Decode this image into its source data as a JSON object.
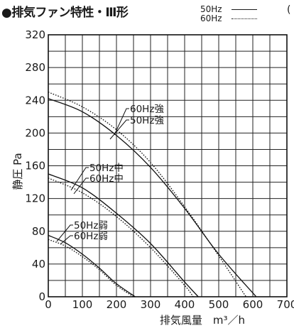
{
  "chart_data": {
    "type": "line",
    "title": "●排気ファン特性・Ⅲ形",
    "xlabel": "排気風量　m³／h",
    "ylabel": "静圧 Pa",
    "xlim": [
      0,
      700
    ],
    "ylim": [
      0,
      320
    ],
    "xticks": [
      0,
      100,
      200,
      300,
      400,
      500,
      600,
      700
    ],
    "yticks": [
      0,
      40,
      80,
      120,
      160,
      200,
      240,
      280,
      320
    ],
    "grid": true,
    "legend": [
      {
        "label": "50Hz",
        "style": "solid"
      },
      {
        "label": "60Hz",
        "style": "dotted"
      }
    ],
    "series": [
      {
        "name": "60Hz強",
        "style": "dotted",
        "x": [
          0,
          100,
          200,
          300,
          400,
          500,
          580
        ],
        "y": [
          250,
          232,
          204,
          164,
          110,
          50,
          0
        ]
      },
      {
        "name": "50Hz強",
        "style": "solid",
        "x": [
          0,
          100,
          200,
          300,
          400,
          500,
          610
        ],
        "y": [
          242,
          226,
          197,
          158,
          108,
          52,
          0
        ]
      },
      {
        "name": "50Hz中",
        "style": "solid",
        "x": [
          0,
          100,
          200,
          300,
          400,
          440
        ],
        "y": [
          150,
          133,
          102,
          65,
          18,
          0
        ]
      },
      {
        "name": "60Hz中",
        "style": "dotted",
        "x": [
          0,
          100,
          200,
          300,
          400,
          425
        ],
        "y": [
          145,
          127,
          98,
          60,
          14,
          0
        ]
      },
      {
        "name": "50Hz弱",
        "style": "solid",
        "x": [
          0,
          50,
          100,
          150,
          200,
          255
        ],
        "y": [
          75,
          66,
          52,
          35,
          16,
          0
        ]
      },
      {
        "name": "60Hz弱",
        "style": "dotted",
        "x": [
          0,
          50,
          100,
          150,
          200,
          250
        ],
        "y": [
          70,
          62,
          49,
          33,
          14,
          0
        ]
      }
    ],
    "annotations": [
      {
        "text": "60Hz強",
        "series": "60Hz強"
      },
      {
        "text": "50Hz強",
        "series": "50Hz強"
      },
      {
        "text": "50Hz中",
        "series": "50Hz中"
      },
      {
        "text": "60Hz中",
        "series": "60Hz中"
      },
      {
        "text": "50Hz弱",
        "series": "50Hz弱"
      },
      {
        "text": "60Hz弱",
        "series": "60Hz弱"
      }
    ]
  },
  "legend_labels": {
    "hz50": "50Hz",
    "hz60": "60Hz"
  },
  "cutoff_mark": "("
}
